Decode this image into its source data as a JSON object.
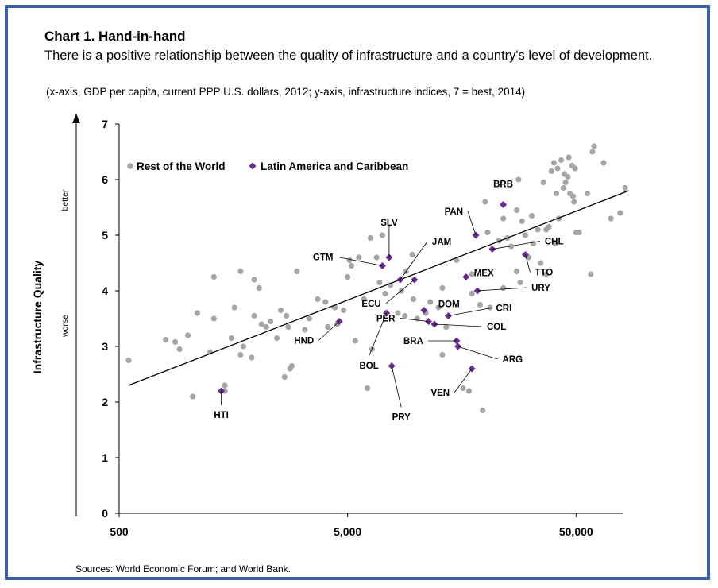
{
  "title": "Chart 1. Hand-in-hand",
  "subtitle": "There is a positive relationship between the quality of infrastructure and a country's level of development.",
  "units_note": "(x-axis, GDP per capita, current PPP U.S. dollars, 2012; y-axis, infrastructure indices, 7 = best, 2014)",
  "source": "Sources: World Economic Forum; and World Bank.",
  "colors": {
    "border": "#3c5fa6",
    "row_points": "#a6a6a6",
    "lac_points": "#6a2c8e",
    "trend": "#000000"
  },
  "chart_data": {
    "type": "scatter",
    "x_scale": "log",
    "xlim": [
      500,
      80000
    ],
    "ylim": [
      0,
      7
    ],
    "x_ticks": [
      500,
      5000,
      50000
    ],
    "x_tick_labels": [
      "500",
      "5,000",
      "50,000"
    ],
    "y_ticks": [
      0,
      1,
      2,
      3,
      4,
      5,
      6,
      7
    ],
    "ylabel": "Infrastructure Quality",
    "y_better": "better",
    "y_worse": "worse",
    "legend_position": "top-left",
    "series": [
      {
        "name": "Rest of the World",
        "points": [
          [
            550,
            2.75
          ],
          [
            800,
            3.12
          ],
          [
            880,
            3.08
          ],
          [
            920,
            2.95
          ],
          [
            1000,
            3.2
          ],
          [
            1050,
            2.1
          ],
          [
            1100,
            3.6
          ],
          [
            1250,
            2.9
          ],
          [
            1300,
            4.25
          ],
          [
            1300,
            3.5
          ],
          [
            1450,
            2.3
          ],
          [
            1450,
            2.2
          ],
          [
            1550,
            3.15
          ],
          [
            1600,
            3.7
          ],
          [
            1700,
            4.35
          ],
          [
            1700,
            2.85
          ],
          [
            1750,
            3.0
          ],
          [
            1900,
            2.8
          ],
          [
            1950,
            4.2
          ],
          [
            1950,
            3.55
          ],
          [
            2050,
            4.05
          ],
          [
            2100,
            3.4
          ],
          [
            2200,
            3.35
          ],
          [
            2300,
            3.45
          ],
          [
            2450,
            3.15
          ],
          [
            2550,
            3.65
          ],
          [
            2650,
            2.45
          ],
          [
            2700,
            3.55
          ],
          [
            2750,
            3.35
          ],
          [
            2800,
            2.6
          ],
          [
            2850,
            2.65
          ],
          [
            3000,
            4.35
          ],
          [
            3250,
            3.3
          ],
          [
            3400,
            3.5
          ],
          [
            3700,
            3.85
          ],
          [
            4000,
            3.8
          ],
          [
            4100,
            3.35
          ],
          [
            4400,
            3.7
          ],
          [
            4500,
            3.4
          ],
          [
            4800,
            3.65
          ],
          [
            5000,
            4.25
          ],
          [
            5100,
            4.55
          ],
          [
            5200,
            4.45
          ],
          [
            5600,
            4.6
          ],
          [
            5900,
            3.85
          ],
          [
            5400,
            3.1
          ],
          [
            6100,
            2.25
          ],
          [
            6300,
            4.95
          ],
          [
            6400,
            2.95
          ],
          [
            6700,
            4.6
          ],
          [
            6900,
            4.15
          ],
          [
            7100,
            5.0
          ],
          [
            7300,
            3.95
          ],
          [
            7700,
            4.1
          ],
          [
            8300,
            3.6
          ],
          [
            8600,
            4.0
          ],
          [
            8900,
            3.55
          ],
          [
            9000,
            4.35
          ],
          [
            9600,
            4.65
          ],
          [
            9700,
            3.85
          ],
          [
            10100,
            3.5
          ],
          [
            11000,
            3.6
          ],
          [
            11500,
            3.8
          ],
          [
            12500,
            3.7
          ],
          [
            13000,
            4.05
          ],
          [
            13500,
            3.35
          ],
          [
            13000,
            2.85
          ],
          [
            15000,
            4.55
          ],
          [
            16000,
            2.25
          ],
          [
            17000,
            2.2
          ],
          [
            17500,
            4.3
          ],
          [
            17500,
            3.95
          ],
          [
            19000,
            3.75
          ],
          [
            19500,
            1.85
          ],
          [
            20000,
            5.6
          ],
          [
            20500,
            5.05
          ],
          [
            21000,
            3.7
          ],
          [
            23000,
            4.9
          ],
          [
            24000,
            5.3
          ],
          [
            24000,
            4.05
          ],
          [
            25000,
            4.95
          ],
          [
            26000,
            4.8
          ],
          [
            27500,
            5.45
          ],
          [
            27500,
            4.35
          ],
          [
            28000,
            6.0
          ],
          [
            28500,
            4.15
          ],
          [
            29000,
            5.25
          ],
          [
            30000,
            5.0
          ],
          [
            31000,
            4.6
          ],
          [
            32000,
            5.35
          ],
          [
            32500,
            4.85
          ],
          [
            34000,
            5.1
          ],
          [
            35000,
            4.5
          ],
          [
            36000,
            5.95
          ],
          [
            37000,
            5.1
          ],
          [
            37000,
            4.3
          ],
          [
            38000,
            5.15
          ],
          [
            39000,
            6.15
          ],
          [
            40000,
            6.3
          ],
          [
            40500,
            4.85
          ],
          [
            41000,
            5.75
          ],
          [
            41500,
            6.2
          ],
          [
            42000,
            5.3
          ],
          [
            43000,
            6.35
          ],
          [
            44000,
            5.85
          ],
          [
            44500,
            6.1
          ],
          [
            45000,
            5.95
          ],
          [
            46000,
            6.05
          ],
          [
            46500,
            6.4
          ],
          [
            47000,
            5.75
          ],
          [
            48000,
            6.25
          ],
          [
            48500,
            5.7
          ],
          [
            49000,
            5.6
          ],
          [
            49500,
            6.2
          ],
          [
            50000,
            5.05
          ],
          [
            51500,
            5.05
          ],
          [
            56000,
            5.75
          ],
          [
            58000,
            4.3
          ],
          [
            59000,
            6.5
          ],
          [
            60000,
            6.6
          ],
          [
            66000,
            6.3
          ],
          [
            71000,
            5.3
          ],
          [
            78000,
            5.4
          ],
          [
            82000,
            5.85
          ]
        ]
      },
      {
        "name": "Latin America and Caribbean",
        "points": [
          {
            "label": "HTI",
            "x": 1400,
            "y": 2.2
          },
          {
            "label": "HND",
            "x": 4600,
            "y": 3.45
          },
          {
            "label": "GTM",
            "x": 7100,
            "y": 4.45
          },
          {
            "label": "BOL",
            "x": 7400,
            "y": 3.6
          },
          {
            "label": "SLV",
            "x": 7600,
            "y": 4.6
          },
          {
            "label": "JAM",
            "x": 8500,
            "y": 4.2
          },
          {
            "label": "PRY",
            "x": 7800,
            "y": 2.65
          },
          {
            "label": "ECU",
            "x": 9800,
            "y": 4.2
          },
          {
            "label": "DOM",
            "x": 10800,
            "y": 3.65
          },
          {
            "label": "PER",
            "x": 11300,
            "y": 3.45
          },
          {
            "label": "COL",
            "x": 12000,
            "y": 3.4
          },
          {
            "label": "BRA",
            "x": 15000,
            "y": 3.1
          },
          {
            "label": "ARG",
            "x": 15200,
            "y": 3.0
          },
          {
            "label": "CRI",
            "x": 13800,
            "y": 3.55
          },
          {
            "label": "VEN",
            "x": 17500,
            "y": 2.6
          },
          {
            "label": "URY",
            "x": 18500,
            "y": 4.0
          },
          {
            "label": "MEX",
            "x": 16500,
            "y": 4.25
          },
          {
            "label": "PAN",
            "x": 18200,
            "y": 5.0
          },
          {
            "label": "BRB",
            "x": 24000,
            "y": 5.55
          },
          {
            "label": "CHL",
            "x": 21500,
            "y": 4.75
          },
          {
            "label": "TTO",
            "x": 30000,
            "y": 4.65
          }
        ]
      }
    ],
    "trendline": {
      "from": [
        550,
        2.3
      ],
      "to": [
        85000,
        5.8
      ]
    }
  }
}
